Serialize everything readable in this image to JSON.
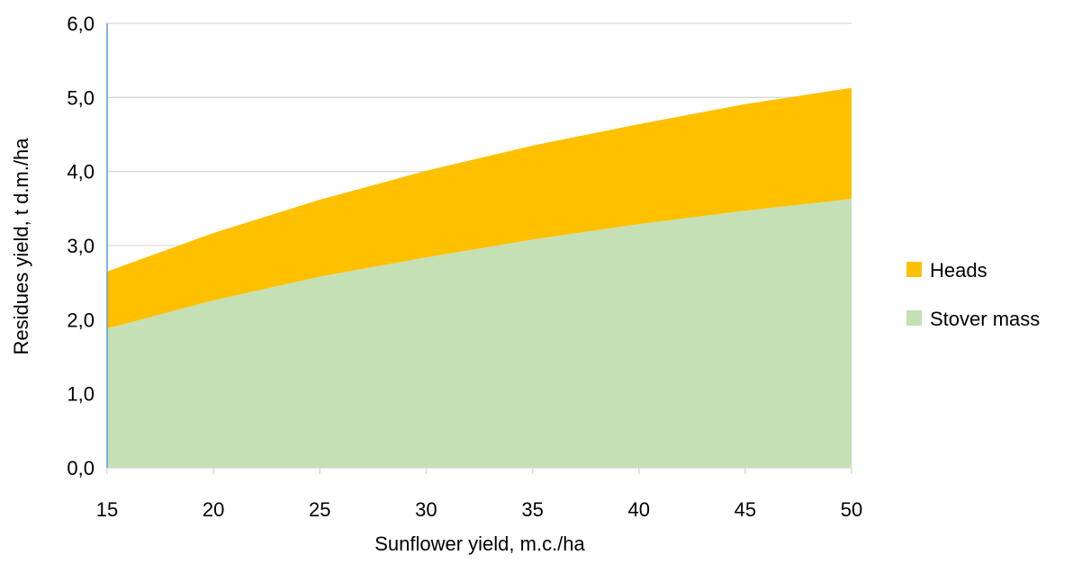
{
  "chart_data": {
    "type": "area",
    "stacked": true,
    "x": [
      15,
      20,
      25,
      30,
      35,
      40,
      45,
      50
    ],
    "series": [
      {
        "name": "Stover mass",
        "values": [
          1.88,
          2.26,
          2.58,
          2.84,
          3.08,
          3.29,
          3.47,
          3.63
        ],
        "color": "#c5e0b4"
      },
      {
        "name": "Heads",
        "values": [
          0.77,
          0.91,
          1.04,
          1.17,
          1.27,
          1.35,
          1.44,
          1.5
        ],
        "color": "#ffc000"
      }
    ],
    "xlabel": "Sunflower yield, m.c./ha",
    "ylabel": "Residues yield,  t d.m./ha",
    "xlim": [
      15,
      50
    ],
    "ylim": [
      0,
      6
    ],
    "x_ticks": [
      "15",
      "20",
      "25",
      "30",
      "35",
      "40",
      "45",
      "50"
    ],
    "y_ticks": [
      "0,0",
      "1,0",
      "2,0",
      "3,0",
      "4,0",
      "5,0",
      "6,0"
    ],
    "grid": true,
    "legend": {
      "position": "right",
      "entries": [
        "Heads",
        "Stover mass"
      ]
    },
    "colors": {
      "grid": "#d9d9d9",
      "y_axis_line": "#5b9bd5",
      "x_axis_line": "#d9d9d9"
    }
  }
}
